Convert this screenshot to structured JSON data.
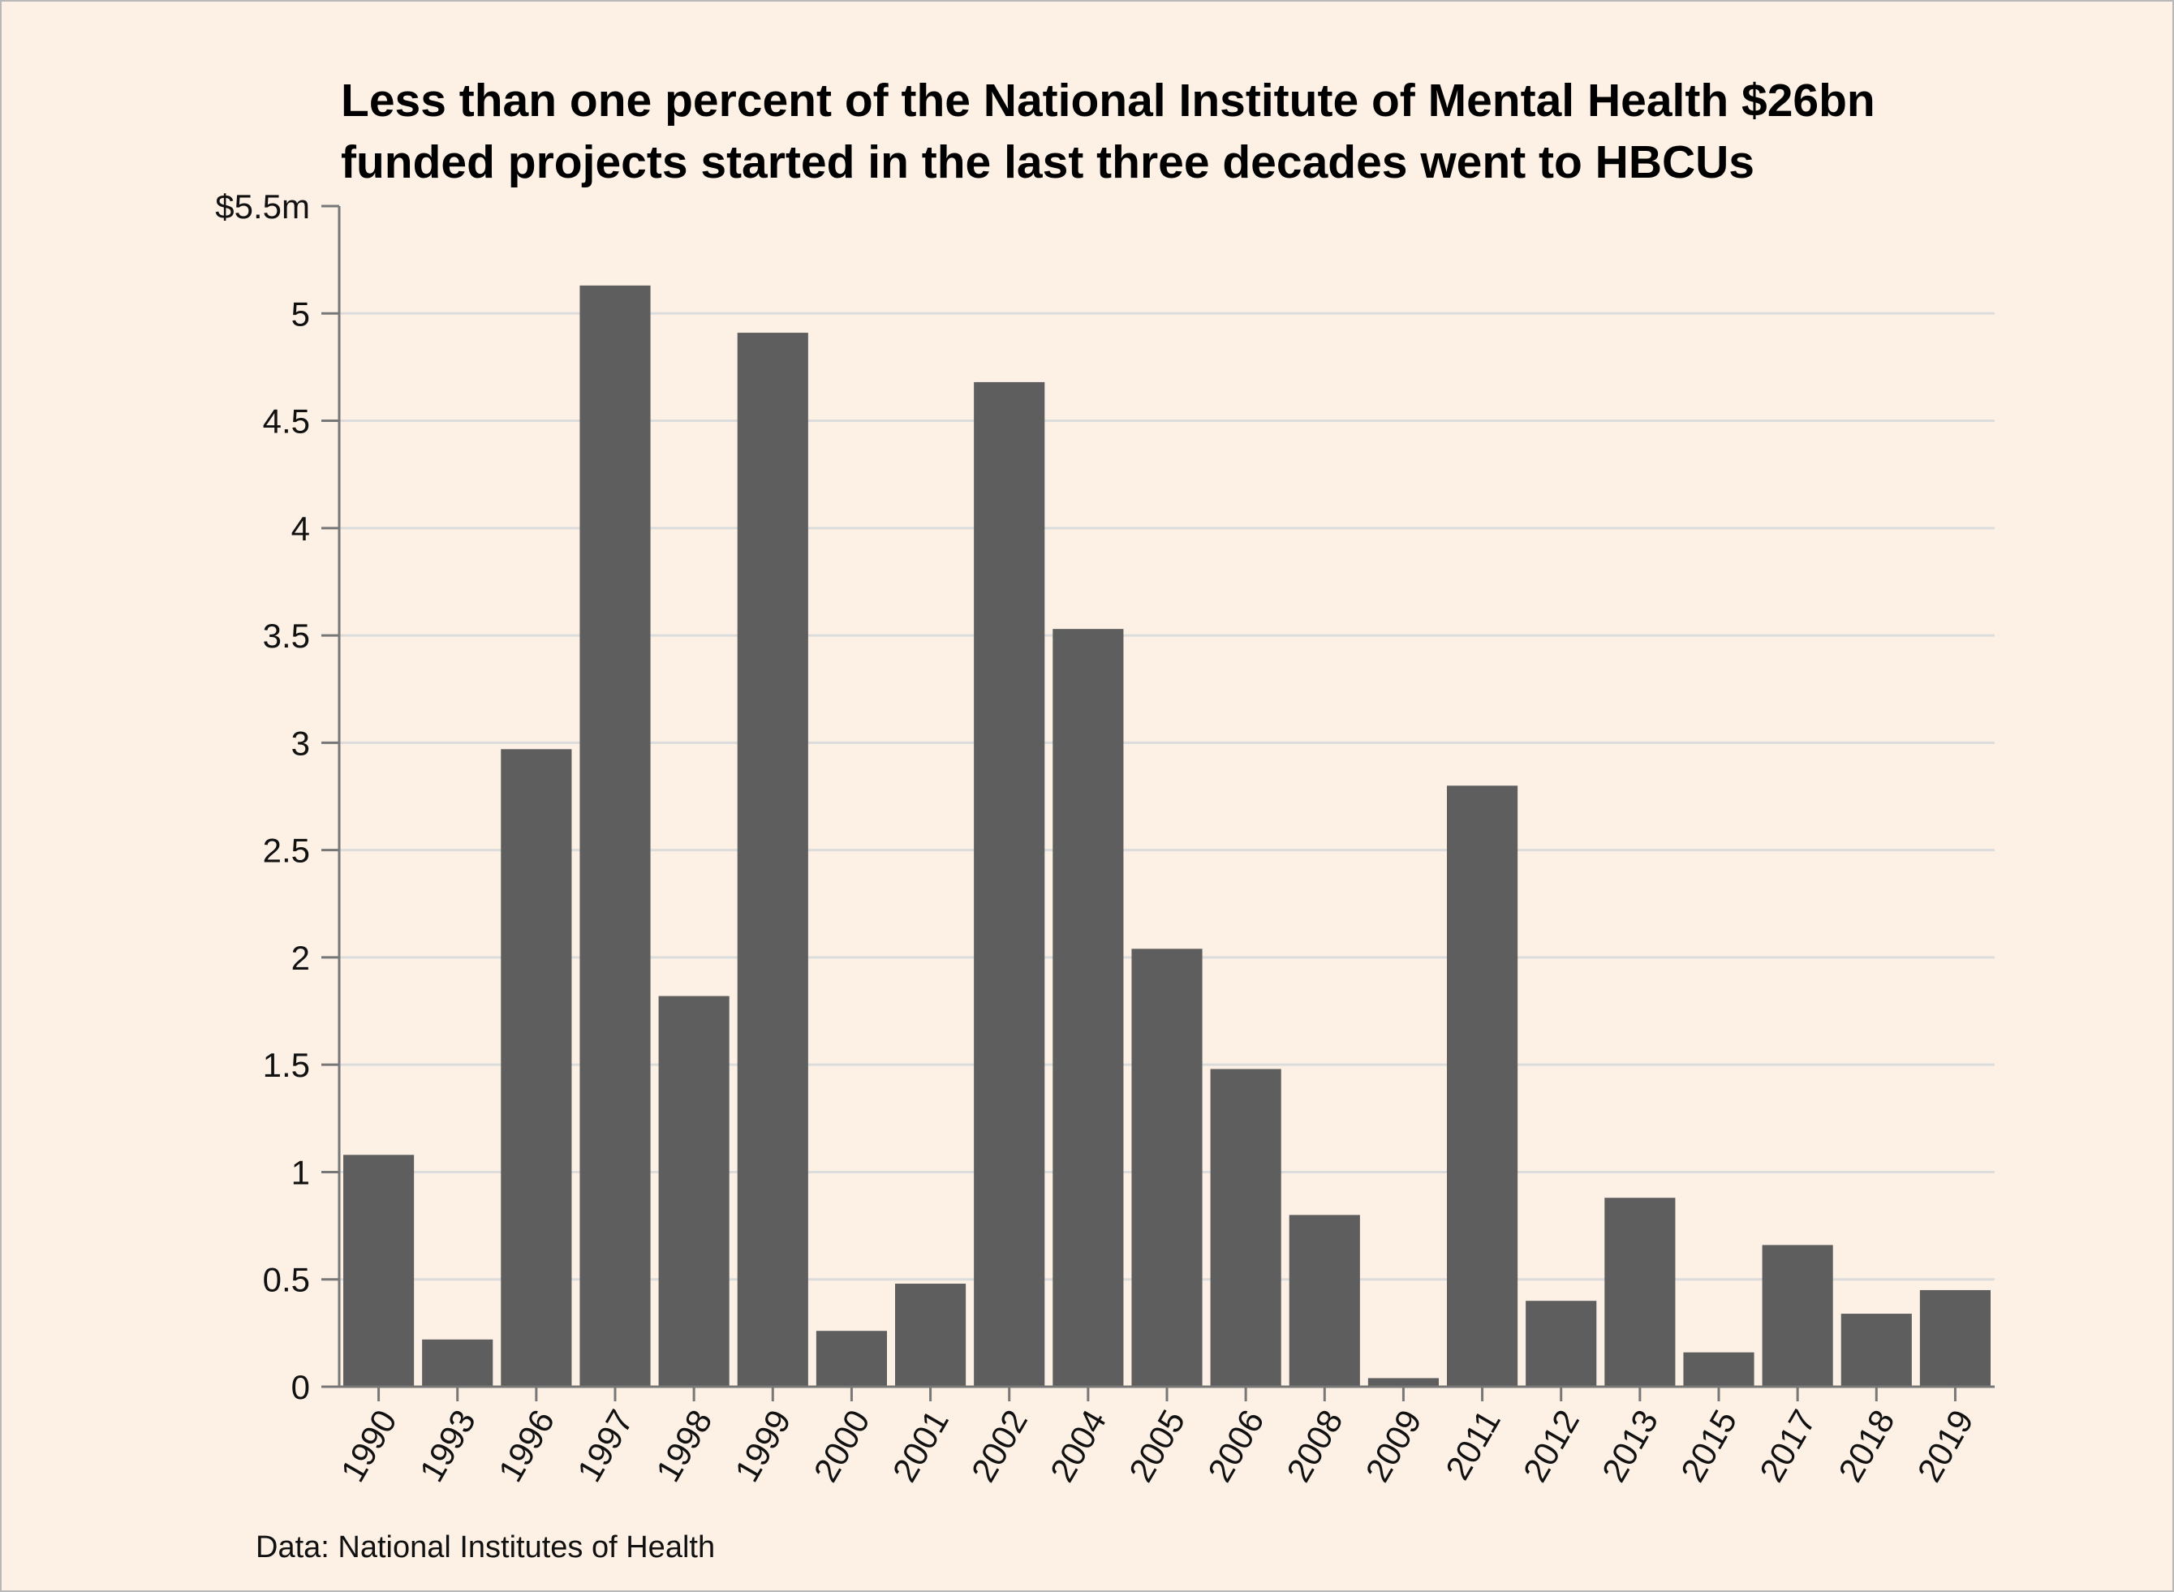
{
  "chart_data": {
    "type": "bar",
    "title_lines": [
      "Less than one percent of the National Institute of Mental Health $26bn",
      "funded projects started in the last three decades went to HBCUs"
    ],
    "xlabel": "",
    "ylabel": "",
    "ylim": [
      0,
      5.5
    ],
    "y_ticks": [
      0,
      0.5,
      1,
      1.5,
      2,
      2.5,
      3,
      3.5,
      4,
      4.5,
      5,
      5.5
    ],
    "y_tick_labels": [
      "0",
      "0.5",
      "1",
      "1.5",
      "2",
      "2.5",
      "3",
      "3.5",
      "4",
      "4.5",
      "5",
      "$5.5m"
    ],
    "categories": [
      "1990",
      "1993",
      "1996",
      "1997",
      "1998",
      "1999",
      "2000",
      "2001",
      "2002",
      "2004",
      "2005",
      "2006",
      "2008",
      "2009",
      "2011",
      "2012",
      "2013",
      "2015",
      "2017",
      "2018",
      "2019"
    ],
    "values": [
      1.08,
      0.22,
      2.97,
      5.13,
      1.82,
      4.91,
      0.26,
      0.48,
      4.68,
      3.53,
      2.04,
      1.48,
      0.8,
      0.04,
      2.8,
      0.4,
      0.88,
      0.16,
      0.66,
      0.34,
      0.45
    ],
    "grid": true,
    "bar_color": "#5e5e5e",
    "grid_color": "#dcdcdc",
    "axis_color": "#777777",
    "background": "#fdf1e6"
  },
  "source": "Data: National Institutes of Health"
}
